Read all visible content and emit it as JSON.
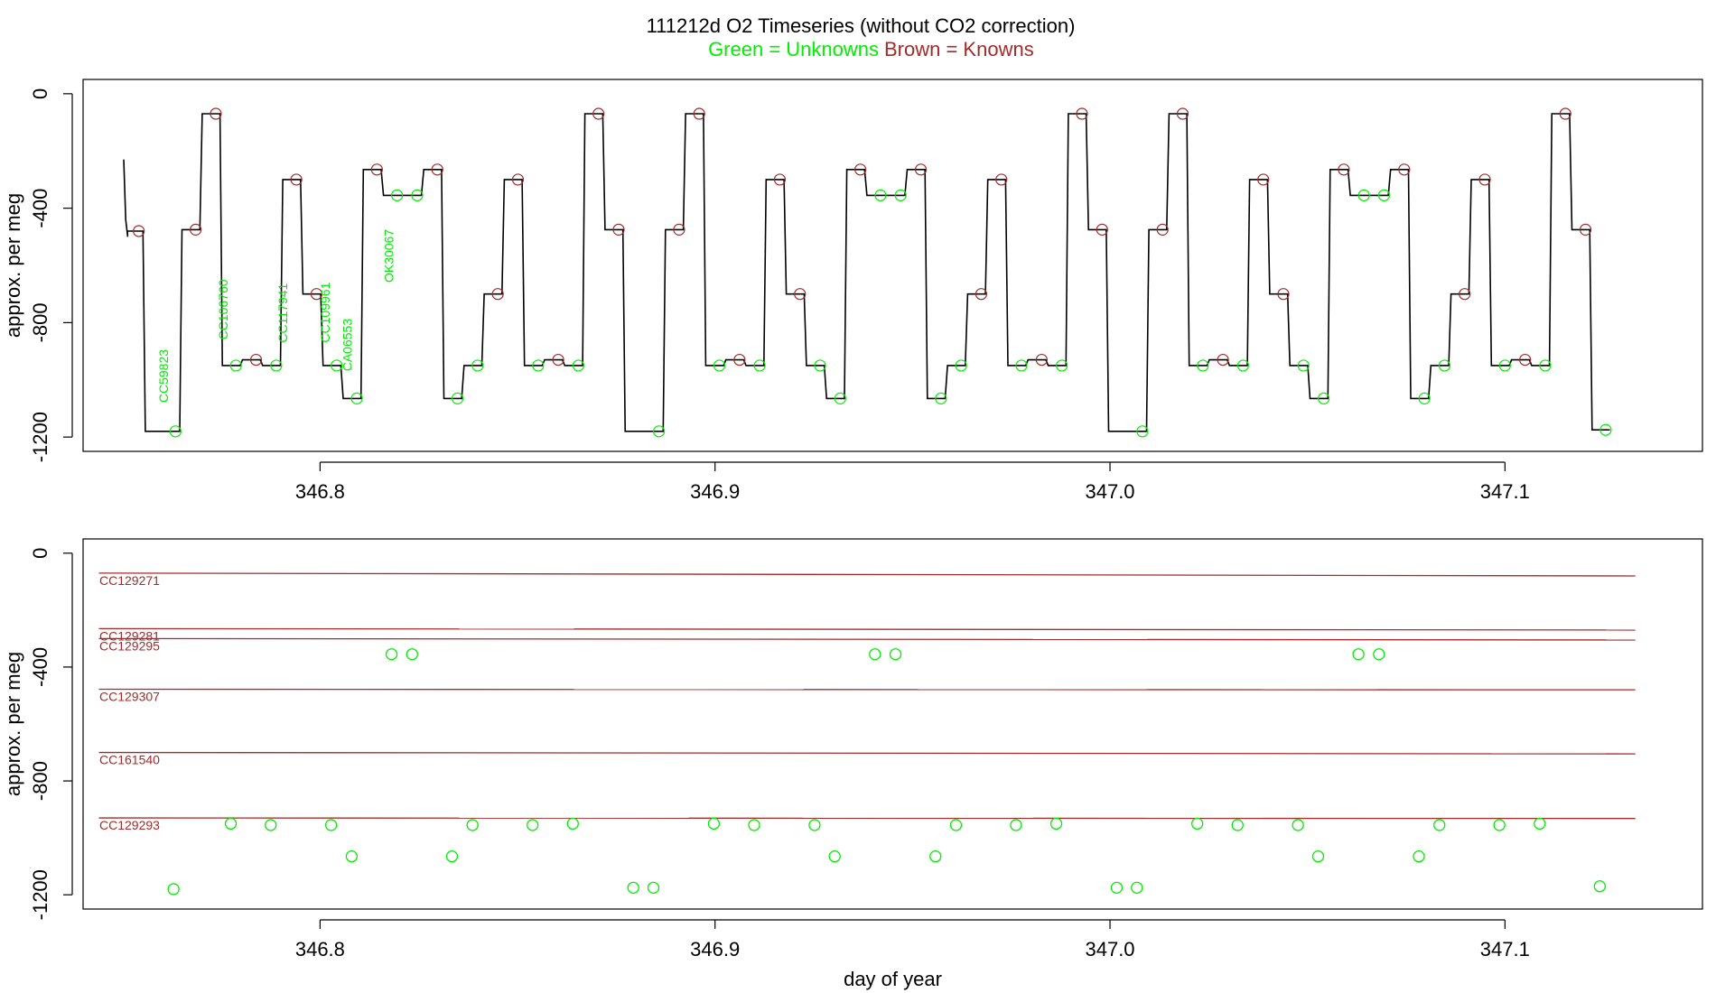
{
  "title": {
    "main": "111212d   O2 Timeseries (without CO2 correction)",
    "green_note": "Green = Unknowns",
    "brown_note": "Brown = Knowns"
  },
  "colors": {
    "unknown": "#00ee00",
    "known": "#a52a2a",
    "trace": "#000000"
  },
  "chart_data": [
    {
      "type": "line",
      "name": "top-panel",
      "ylabel": "approx. per meg",
      "xlim": [
        346.74,
        347.15
      ],
      "ylim": [
        -1250,
        50
      ],
      "yticks": [
        0,
        -400,
        -800,
        -1200
      ],
      "ytick_labels": [
        "0",
        "-400",
        "-800",
        "-1200"
      ],
      "xticks": [
        346.8,
        346.9,
        347.0,
        347.1
      ],
      "xtick_labels": [
        "346.8",
        "346.9",
        "347.0",
        "347.1"
      ],
      "steps": [
        {
          "x0": 346.75,
          "x1": 346.7553,
          "y": -480,
          "t": "k"
        },
        {
          "x0": 346.7553,
          "x1": 346.7646,
          "y": -1180,
          "t": "u"
        },
        {
          "x0": 346.7646,
          "x1": 346.7697,
          "y": -475,
          "t": "k"
        },
        {
          "x0": 346.7697,
          "x1": 346.7748,
          "y": -70,
          "t": "k"
        },
        {
          "x0": 346.7748,
          "x1": 346.7799,
          "y": -950,
          "t": "u"
        },
        {
          "x0": 346.7799,
          "x1": 346.785,
          "y": -930,
          "t": "k"
        },
        {
          "x0": 346.785,
          "x1": 346.7901,
          "y": -950,
          "t": "u"
        },
        {
          "x0": 346.7901,
          "x1": 346.7952,
          "y": -300,
          "t": "k"
        },
        {
          "x0": 346.7952,
          "x1": 346.8003,
          "y": -700,
          "t": "k"
        },
        {
          "x0": 346.8003,
          "x1": 346.8054,
          "y": -950,
          "t": "u"
        },
        {
          "x0": 346.8054,
          "x1": 346.8105,
          "y": -1065,
          "t": "u"
        },
        {
          "x0": 346.8105,
          "x1": 346.8156,
          "y": -265,
          "t": "k"
        },
        {
          "x0": 346.8156,
          "x1": 346.8207,
          "y": -355,
          "t": "u"
        },
        {
          "x0": 346.8207,
          "x1": 346.8258,
          "y": -355,
          "t": "u"
        },
        {
          "x0": 346.8258,
          "x1": 346.8309,
          "y": -265,
          "t": "k"
        },
        {
          "x0": 346.8309,
          "x1": 346.836,
          "y": -1065,
          "t": "u"
        },
        {
          "x0": 346.836,
          "x1": 346.8411,
          "y": -950,
          "t": "u"
        },
        {
          "x0": 346.8411,
          "x1": 346.8462,
          "y": -700,
          "t": "k"
        },
        {
          "x0": 346.8462,
          "x1": 346.8513,
          "y": -300,
          "t": "k"
        },
        {
          "x0": 346.8513,
          "x1": 346.8564,
          "y": -950,
          "t": "u"
        },
        {
          "x0": 346.8564,
          "x1": 346.8615,
          "y": -930,
          "t": "k"
        },
        {
          "x0": 346.8615,
          "x1": 346.8666,
          "y": -950,
          "t": "u"
        },
        {
          "x0": 346.8666,
          "x1": 346.8717,
          "y": -70,
          "t": "k"
        },
        {
          "x0": 346.8717,
          "x1": 346.8768,
          "y": -475,
          "t": "k"
        },
        {
          "x0": 346.8768,
          "x1": 346.887,
          "y": -1180,
          "t": "u"
        },
        {
          "x0": 346.887,
          "x1": 346.8921,
          "y": -475,
          "t": "k"
        },
        {
          "x0": 346.8921,
          "x1": 346.8972,
          "y": -70,
          "t": "k"
        },
        {
          "x0": 346.8972,
          "x1": 346.9023,
          "y": -950,
          "t": "u"
        },
        {
          "x0": 346.9023,
          "x1": 346.9074,
          "y": -930,
          "t": "k"
        },
        {
          "x0": 346.9074,
          "x1": 346.9125,
          "y": -950,
          "t": "u"
        },
        {
          "x0": 346.9125,
          "x1": 346.9176,
          "y": -300,
          "t": "k"
        },
        {
          "x0": 346.9176,
          "x1": 346.9227,
          "y": -700,
          "t": "k"
        },
        {
          "x0": 346.9227,
          "x1": 346.9278,
          "y": -950,
          "t": "u"
        },
        {
          "x0": 346.9278,
          "x1": 346.9329,
          "y": -1065,
          "t": "u"
        },
        {
          "x0": 346.9329,
          "x1": 346.938,
          "y": -265,
          "t": "k"
        },
        {
          "x0": 346.938,
          "x1": 346.9431,
          "y": -355,
          "t": "u"
        },
        {
          "x0": 346.9431,
          "x1": 346.9482,
          "y": -355,
          "t": "u"
        },
        {
          "x0": 346.9482,
          "x1": 346.9533,
          "y": -265,
          "t": "k"
        },
        {
          "x0": 346.9533,
          "x1": 346.9584,
          "y": -1065,
          "t": "u"
        },
        {
          "x0": 346.9584,
          "x1": 346.9635,
          "y": -950,
          "t": "u"
        },
        {
          "x0": 346.9635,
          "x1": 346.9686,
          "y": -700,
          "t": "k"
        },
        {
          "x0": 346.9686,
          "x1": 346.9737,
          "y": -300,
          "t": "k"
        },
        {
          "x0": 346.9737,
          "x1": 346.9788,
          "y": -950,
          "t": "u"
        },
        {
          "x0": 346.9788,
          "x1": 346.9839,
          "y": -930,
          "t": "k"
        },
        {
          "x0": 346.9839,
          "x1": 346.989,
          "y": -950,
          "t": "u"
        },
        {
          "x0": 346.989,
          "x1": 346.9941,
          "y": -70,
          "t": "k"
        },
        {
          "x0": 346.9941,
          "x1": 346.9992,
          "y": -475,
          "t": "k"
        },
        {
          "x0": 346.9992,
          "x1": 347.0094,
          "y": -1180,
          "t": "u"
        },
        {
          "x0": 347.0094,
          "x1": 347.0145,
          "y": -475,
          "t": "k"
        },
        {
          "x0": 347.0145,
          "x1": 347.0196,
          "y": -70,
          "t": "k"
        },
        {
          "x0": 347.0196,
          "x1": 347.0247,
          "y": -950,
          "t": "u"
        },
        {
          "x0": 347.0247,
          "x1": 347.0298,
          "y": -930,
          "t": "k"
        },
        {
          "x0": 347.0298,
          "x1": 347.0349,
          "y": -950,
          "t": "u"
        },
        {
          "x0": 347.0349,
          "x1": 347.04,
          "y": -300,
          "t": "k"
        },
        {
          "x0": 347.04,
          "x1": 347.0451,
          "y": -700,
          "t": "k"
        },
        {
          "x0": 347.0451,
          "x1": 347.0502,
          "y": -950,
          "t": "u"
        },
        {
          "x0": 347.0502,
          "x1": 347.0553,
          "y": -1065,
          "t": "u"
        },
        {
          "x0": 347.0553,
          "x1": 347.0604,
          "y": -265,
          "t": "k"
        },
        {
          "x0": 347.0604,
          "x1": 347.0655,
          "y": -355,
          "t": "u"
        },
        {
          "x0": 347.0655,
          "x1": 347.0706,
          "y": -355,
          "t": "u"
        },
        {
          "x0": 347.0706,
          "x1": 347.0757,
          "y": -265,
          "t": "k"
        },
        {
          "x0": 347.0757,
          "x1": 347.0808,
          "y": -1065,
          "t": "u"
        },
        {
          "x0": 347.0808,
          "x1": 347.0859,
          "y": -950,
          "t": "u"
        },
        {
          "x0": 347.0859,
          "x1": 347.091,
          "y": -700,
          "t": "k"
        },
        {
          "x0": 347.091,
          "x1": 347.0961,
          "y": -300,
          "t": "k"
        },
        {
          "x0": 347.0961,
          "x1": 347.1012,
          "y": -950,
          "t": "u"
        },
        {
          "x0": 347.1012,
          "x1": 347.1063,
          "y": -930,
          "t": "k"
        },
        {
          "x0": 347.1063,
          "x1": 347.1114,
          "y": -950,
          "t": "u"
        },
        {
          "x0": 347.1114,
          "x1": 347.1165,
          "y": -70,
          "t": "k"
        },
        {
          "x0": 347.1165,
          "x1": 347.1216,
          "y": -475,
          "t": "k"
        },
        {
          "x0": 347.1216,
          "x1": 347.1267,
          "y": -1175,
          "t": "u"
        }
      ],
      "sample_labels": [
        {
          "text": "CC59823",
          "x": 346.7615,
          "y": -1080
        },
        {
          "text": "CC106760",
          "x": 346.7766,
          "y": -860
        },
        {
          "text": "CC117941",
          "x": 346.7917,
          "y": -870
        },
        {
          "text": "CC109961",
          "x": 346.8024,
          "y": -870
        },
        {
          "text": "CA06553",
          "x": 346.808,
          "y": -970
        },
        {
          "text": "OK30067",
          "x": 346.8185,
          "y": -660
        }
      ]
    },
    {
      "type": "scatter",
      "name": "bottom-panel",
      "xlabel": "day of year",
      "ylabel": "approx. per meg",
      "xlim": [
        346.74,
        347.15
      ],
      "ylim": [
        -1250,
        50
      ],
      "yticks": [
        0,
        -400,
        -800,
        -1200
      ],
      "ytick_labels": [
        "0",
        "-400",
        "-800",
        "-1200"
      ],
      "xticks": [
        346.8,
        346.9,
        347.0,
        347.1
      ],
      "xtick_labels": [
        "346.8",
        "346.9",
        "347.0",
        "347.1"
      ],
      "known_lines": [
        {
          "name": "CC129271",
          "y0": -70,
          "y1": -80
        },
        {
          "name": "CC129281",
          "y0": -265,
          "y1": -270
        },
        {
          "name": "CC129295",
          "y0": -300,
          "y1": -305
        },
        {
          "name": "CC129307",
          "y0": -478,
          "y1": -480
        },
        {
          "name": "CC161540",
          "y0": -700,
          "y1": -705
        },
        {
          "name": "CC129293",
          "y0": -930,
          "y1": -932
        }
      ],
      "known_line_x": [
        346.744,
        347.133
      ],
      "unknown_points": [
        {
          "x": 346.7629,
          "y": -1180
        },
        {
          "x": 346.7774,
          "y": -950
        },
        {
          "x": 346.7875,
          "y": -955
        },
        {
          "x": 346.8028,
          "y": -955
        },
        {
          "x": 346.808,
          "y": -1065
        },
        {
          "x": 346.8181,
          "y": -355
        },
        {
          "x": 346.8233,
          "y": -355
        },
        {
          "x": 346.8334,
          "y": -1065
        },
        {
          "x": 346.8386,
          "y": -955
        },
        {
          "x": 346.8538,
          "y": -955
        },
        {
          "x": 346.864,
          "y": -950
        },
        {
          "x": 346.8793,
          "y": -1175
        },
        {
          "x": 346.8844,
          "y": -1175
        },
        {
          "x": 346.8997,
          "y": -950
        },
        {
          "x": 346.9099,
          "y": -955
        },
        {
          "x": 346.9252,
          "y": -955
        },
        {
          "x": 346.9303,
          "y": -1065
        },
        {
          "x": 346.9405,
          "y": -355
        },
        {
          "x": 346.9457,
          "y": -355
        },
        {
          "x": 346.9558,
          "y": -1065
        },
        {
          "x": 346.961,
          "y": -955
        },
        {
          "x": 346.9762,
          "y": -955
        },
        {
          "x": 346.9864,
          "y": -950
        },
        {
          "x": 347.0017,
          "y": -1175
        },
        {
          "x": 347.0068,
          "y": -1175
        },
        {
          "x": 347.0221,
          "y": -950
        },
        {
          "x": 347.0323,
          "y": -955
        },
        {
          "x": 347.0476,
          "y": -955
        },
        {
          "x": 347.0527,
          "y": -1065
        },
        {
          "x": 347.0629,
          "y": -355
        },
        {
          "x": 347.0681,
          "y": -355
        },
        {
          "x": 347.0782,
          "y": -1065
        },
        {
          "x": 347.0834,
          "y": -955
        },
        {
          "x": 347.0986,
          "y": -955
        },
        {
          "x": 347.1088,
          "y": -950
        },
        {
          "x": 347.124,
          "y": -1170
        }
      ]
    }
  ]
}
